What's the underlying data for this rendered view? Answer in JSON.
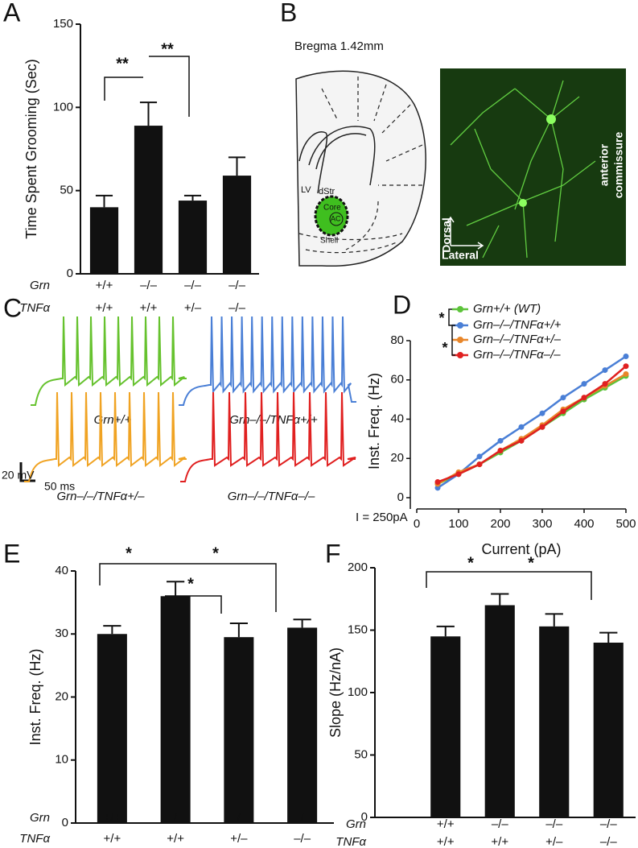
{
  "chart_data": [
    {
      "panel": "A",
      "type": "bar",
      "ylabel": "Time Spent Grooming (Sec)",
      "rows": [
        {
          "name": "Grn",
          "labels": [
            "+/+",
            "–/–",
            "–/–",
            "–/–"
          ]
        },
        {
          "name": "TNFα",
          "labels": [
            "+/+",
            "+/+",
            "+/–",
            "–/–"
          ]
        }
      ],
      "values": [
        40,
        89,
        44,
        59
      ],
      "errors": [
        7,
        14,
        3,
        11
      ],
      "color": "#111111",
      "ylim": [
        0,
        150
      ],
      "yticks": [
        0,
        50,
        100,
        150
      ],
      "annotations": [
        "**",
        "**"
      ]
    },
    {
      "panel": "D",
      "type": "line",
      "xlabel": "Current (pA)",
      "ylabel": "Inst. Freq. (Hz)",
      "x": [
        50,
        100,
        150,
        200,
        250,
        300,
        350,
        400,
        450,
        500
      ],
      "series": [
        {
          "name": "Grn+/+ (WT)",
          "color": "#5cc33a",
          "values": [
            7,
            12,
            17,
            23,
            29,
            36,
            43,
            50,
            56,
            62
          ]
        },
        {
          "name": "Grn–/–/TNFα+/+",
          "color": "#4a7fd6",
          "values": [
            5,
            12,
            21,
            29,
            36,
            43,
            51,
            58,
            65,
            72
          ]
        },
        {
          "name": "Grn–/–/TNFα+/–",
          "color": "#e8862a",
          "values": [
            7,
            13,
            17,
            24,
            30,
            37,
            45,
            51,
            57,
            63
          ]
        },
        {
          "name": "Grn–/–/TNFα–/–",
          "color": "#e02020",
          "values": [
            8,
            12,
            17,
            24,
            29,
            36,
            44,
            51,
            58,
            67
          ]
        }
      ],
      "xlim": [
        0,
        500
      ],
      "xticks": [
        0,
        100,
        200,
        300,
        400,
        500
      ],
      "ylim": [
        0,
        80
      ],
      "yticks": [
        0,
        20,
        40,
        60,
        80
      ],
      "annotations": [
        "*",
        "*"
      ]
    },
    {
      "panel": "E",
      "type": "bar",
      "ylabel": "Inst. Freq. (Hz)",
      "rows": [
        {
          "name": "Grn",
          "labels": [
            "+/+",
            "–/–",
            "–/–",
            "–/–"
          ]
        },
        {
          "name": "TNFα",
          "labels": [
            "+/+",
            "+/+",
            "+/–",
            "–/–"
          ]
        }
      ],
      "values": [
        30,
        36,
        29.5,
        31
      ],
      "errors": [
        1.3,
        2.3,
        2.2,
        1.3
      ],
      "color": "#111111",
      "ylim": [
        0,
        40
      ],
      "yticks": [
        0,
        10,
        20,
        30,
        40
      ],
      "annotations": [
        "*",
        "*",
        "*"
      ]
    },
    {
      "panel": "F",
      "type": "bar",
      "ylabel": "Slope (Hz/nA)",
      "rows": [
        {
          "name": "Grn",
          "labels": [
            "+/+",
            "–/–",
            "–/–",
            "–/–"
          ]
        },
        {
          "name": "TNFα",
          "labels": [
            "+/+",
            "+/+",
            "+/–",
            "–/–"
          ]
        }
      ],
      "values": [
        145,
        170,
        153,
        140
      ],
      "errors": [
        8,
        9,
        10,
        8
      ],
      "color": "#111111",
      "ylim": [
        0,
        200
      ],
      "yticks": [
        0,
        50,
        100,
        150,
        200
      ],
      "annotations": [
        "*",
        "*"
      ]
    }
  ],
  "diagram": {
    "panel": "B",
    "title": "Bregma 1.42mm",
    "labels": [
      "LV",
      "dStr",
      "Core",
      "AC",
      "Shell"
    ],
    "image_labels": [
      "anterior",
      "commissure",
      "Dorsal",
      "Lateral"
    ]
  },
  "traces": {
    "panel": "C",
    "items": [
      {
        "label": "Grn+/+",
        "color": "#66c22e",
        "spike_count": 9
      },
      {
        "label": "Grn–/–/TNFα+/+",
        "color": "#4a7fd6",
        "spike_count": 14
      },
      {
        "label": "Grn–/–/TNFα+/–",
        "color": "#f0a323",
        "spike_count": 9
      },
      {
        "label": "Grn–/–/TNFα–/–",
        "color": "#e02020",
        "spike_count": 9
      }
    ],
    "scale_labels": [
      "20 mV",
      "50 ms"
    ],
    "stimulus": "I = 250pA"
  }
}
